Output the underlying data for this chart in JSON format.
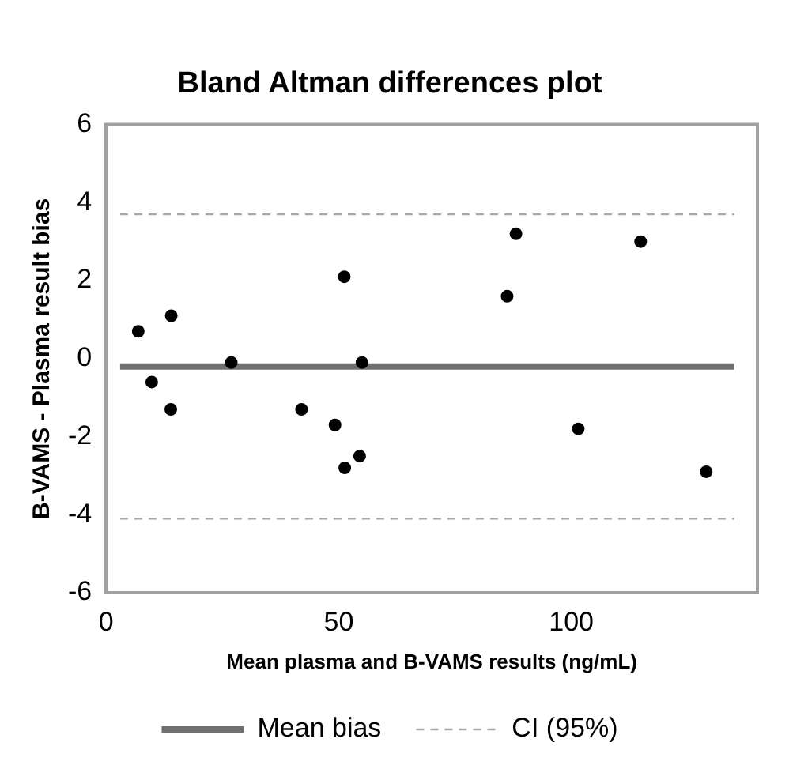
{
  "chart_data": {
    "type": "scatter",
    "title": "Bland Altman differences plot",
    "xlabel": "Mean plasma and B-VAMS results (ng/mL)",
    "ylabel": "B-VAMS - Plasma result bias",
    "xlim": [
      0,
      140
    ],
    "xticks": [
      0,
      50,
      100
    ],
    "ylim": [
      -6,
      6
    ],
    "yticks": [
      -6,
      -4,
      -2,
      0,
      2,
      4,
      6
    ],
    "grid": false,
    "legend": "bottom",
    "marker": "circle",
    "series": [
      {
        "type": "scatter",
        "color": "#000000",
        "x": [
          6.9,
          9.8,
          14.0,
          13.9,
          26.9,
          42,
          49.2,
          51.2,
          51.3,
          54.5,
          55,
          88.1,
          86.2,
          114.9,
          101.5,
          129
        ],
        "values": [
          0.7,
          -0.6,
          1.1,
          -1.3,
          -0.1,
          -1.3,
          -1.7,
          2.1,
          -2.8,
          -2.5,
          -0.1,
          3.2,
          1.6,
          3.0,
          -1.8,
          -2.9
        ]
      },
      {
        "type": "line",
        "name": "Mean bias",
        "color": "#707070",
        "line_style": "solid",
        "marker": "none",
        "x": [
          3,
          135
        ],
        "values": [
          -0.2,
          -0.2
        ]
      },
      {
        "type": "line",
        "name": "CI (95%)",
        "color": "#a8a8a8",
        "line_style": "dashed",
        "marker": "none",
        "x": [
          3,
          135
        ],
        "values": [
          3.7,
          3.7
        ]
      },
      {
        "type": "line",
        "color": "#a8a8a8",
        "line_style": "dashed",
        "marker": "none",
        "x": [
          3,
          135
        ],
        "values": [
          -4.1,
          -4.1
        ]
      }
    ]
  }
}
